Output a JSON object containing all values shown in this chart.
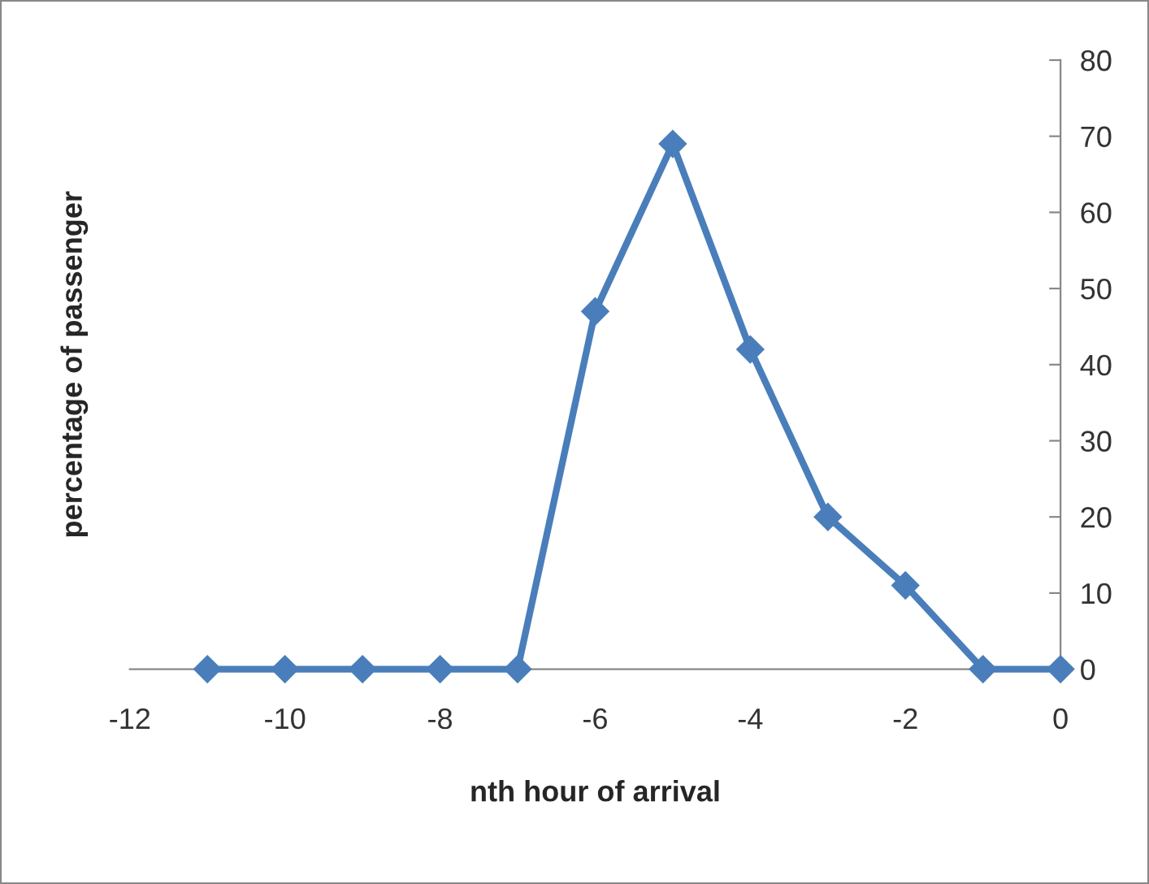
{
  "chart_data": {
    "type": "line",
    "xlabel": "nth hour of arrival",
    "ylabel": "percentage of passenger",
    "x": [
      -11,
      -10,
      -9,
      -8,
      -7,
      -6,
      -5,
      -4,
      -3,
      -2,
      -1,
      0
    ],
    "series": [
      {
        "color": "#4a7ebb",
        "values": [
          0,
          0,
          0,
          0,
          0,
          47,
          69,
          42,
          20,
          11,
          0,
          0
        ]
      }
    ],
    "xlim": [
      -12,
      0
    ],
    "xticks": [
      -12,
      -10,
      -8,
      -6,
      -4,
      -2,
      0
    ],
    "ylim": [
      0,
      80
    ],
    "yticks": [
      0,
      10,
      20,
      30,
      40,
      50,
      60,
      70,
      80
    ],
    "marker": "diamond",
    "line_style": "solid",
    "grid": false,
    "legend": false
  }
}
